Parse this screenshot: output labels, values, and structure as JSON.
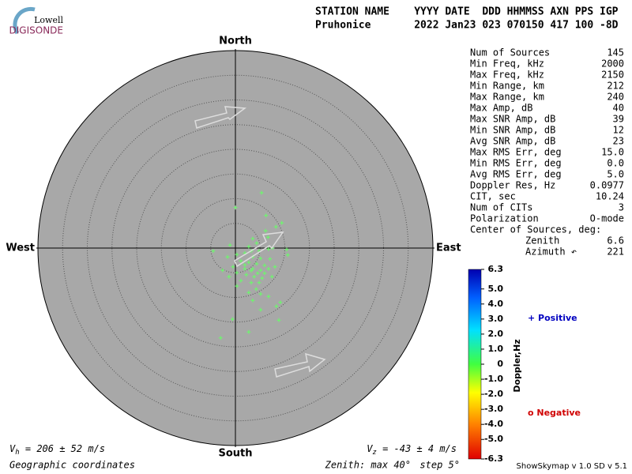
{
  "logo": {
    "top": "Lowell",
    "bottom": "DIGISONDE"
  },
  "header": {
    "columns": "STATION NAME    YYYY DATE  DDD HHMMSS AXN PPS IGP",
    "values": "Pruhonice       2022 Jan23 023 070150 417 100 -8D"
  },
  "stats": [
    [
      "Num of Sources",
      "145"
    ],
    [
      "Min Freq, kHz",
      "2000"
    ],
    [
      "Max Freq, kHz",
      "2150"
    ],
    [
      "Min Range, km",
      "212"
    ],
    [
      "Max Range, km",
      "240"
    ],
    [
      "Max Amp, dB",
      "40"
    ],
    [
      "Max SNR Amp, dB",
      "39"
    ],
    [
      "Min SNR Amp, dB",
      "12"
    ],
    [
      "Avg SNR Amp, dB",
      "23"
    ],
    [
      "Max RMS Err, deg",
      "15.0"
    ],
    [
      "Min RMS Err, deg",
      "0.0"
    ],
    [
      "Avg RMS Err, deg",
      "5.0"
    ],
    [
      "Doppler Res, Hz",
      "0.0977"
    ],
    [
      "CIT, sec",
      "10.24"
    ],
    [
      "Num of CITs",
      "3"
    ],
    [
      "Polarization",
      "O-mode"
    ]
  ],
  "center": {
    "title": "Center of Sources, deg:",
    "rows": [
      [
        "Zenith",
        "6.6"
      ],
      [
        "Azimuth ↶",
        "221"
      ]
    ]
  },
  "chart_data": {
    "type": "scatter",
    "color": "#66ff66",
    "directions": {
      "north": "North",
      "south": "South",
      "east": "East",
      "west": "West"
    },
    "zenith_max": {
      "value": 40,
      "label": "Zenith: max 40°"
    },
    "zenith_step": {
      "value": 5,
      "label": "step 5°"
    },
    "x": [
      5.3,
      0,
      6.2,
      9.4,
      8.2,
      6.1,
      6.6,
      3.5,
      -1.1,
      -4.5,
      4.3,
      2.7,
      6.7,
      7.5,
      10.4,
      10.6,
      1.9,
      0.3,
      -1.6,
      3.5,
      5.1,
      7.0,
      1.1,
      2.7,
      4.3,
      5.9,
      -0.5,
      1.9,
      3.5,
      5.1,
      6.7,
      8.0,
      -2.6,
      0.3,
      2.2,
      3.8,
      5.4,
      7.4,
      1.1,
      3.2,
      4.8,
      0.3,
      4.2,
      2.7,
      5.1,
      6.7,
      3.5,
      9.1,
      8.3,
      5.1,
      -0.6,
      8.8,
      2.7,
      -3.0,
      5.9,
      4.5,
      3.2,
      1.9,
      -1.3,
      4.8,
      3.2
    ],
    "values": [
      11.2,
      8.2,
      6.6,
      5.1,
      4.3,
      3.5,
      2.2,
      1.9,
      0.6,
      -0.6,
      1.0,
      0.3,
      -0.2,
      0,
      -0.3,
      -1.4,
      -1.0,
      -1.3,
      -1.8,
      -1.8,
      -2.1,
      -2.2,
      -2.6,
      -2.9,
      -3.2,
      -3.5,
      -3.8,
      -4.2,
      -4.2,
      -4.5,
      -4.2,
      -3.8,
      -4.5,
      -5.0,
      -5.4,
      -5.8,
      -6.1,
      -5.8,
      -6.6,
      -7.0,
      -7.0,
      -7.7,
      -8.3,
      -9.0,
      -9.3,
      -9.8,
      -10.6,
      -11.0,
      -11.8,
      -12.5,
      -14.4,
      -14.6,
      -17.0,
      -18.2,
      -5.1,
      -5.1,
      -4.6,
      -3.4,
      -5.8,
      -0.6,
      -0.6
    ],
    "colorbar": {
      "label": "Doppler,Hz",
      "lim": [
        -6.3,
        6.3
      ],
      "ticks": [
        6.3,
        {
          "value": 5,
          "label": "5.0"
        },
        {
          "value": 4,
          "label": "4.0"
        },
        {
          "value": 3,
          "label": "3.0"
        },
        {
          "value": 2,
          "label": "2.0"
        },
        {
          "value": 1,
          "label": "1.0"
        },
        0,
        {
          "value": -1,
          "label": "-1.0"
        },
        {
          "value": -2,
          "label": "-2.0"
        },
        {
          "value": -3,
          "label": "-3.0"
        },
        {
          "value": -4,
          "label": "-4.0"
        },
        {
          "value": -5,
          "label": "-5.0"
        },
        -6.3
      ]
    },
    "legend": {
      "positive": "+ Positive",
      "negative": "o Negative"
    }
  },
  "velocity": {
    "vh": {
      "symbol": "V",
      "sub": "h",
      "text": " = 206 ± 52 m/s"
    },
    "vz": {
      "symbol": "V",
      "sub": "z",
      "text": " = -43 ± 4 m/s"
    }
  },
  "footer": {
    "coords": "Geographic coordinates",
    "version": "ShowSkymap v 1.0  SD v 5.1"
  }
}
